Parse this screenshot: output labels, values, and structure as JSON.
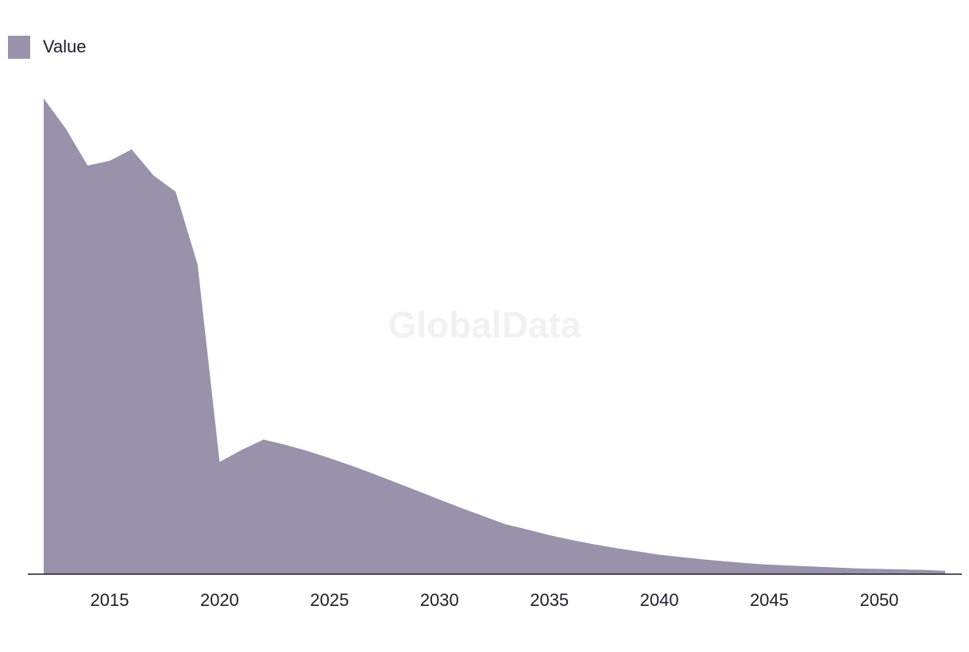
{
  "legend": {
    "label": "Value",
    "color": "#9a91aa"
  },
  "watermark": {
    "text": "GlobalData",
    "color": "#f1f1f1"
  },
  "chart_data": {
    "type": "area",
    "x": [
      2012,
      2013,
      2014,
      2015,
      2016,
      2017,
      2018,
      2019,
      2020,
      2021,
      2022,
      2023,
      2024,
      2025,
      2026,
      2027,
      2028,
      2029,
      2030,
      2031,
      2032,
      2033,
      2034,
      2035,
      2036,
      2037,
      2038,
      2039,
      2040,
      2041,
      2042,
      2043,
      2044,
      2045,
      2046,
      2047,
      2048,
      2049,
      2050,
      2051,
      2052,
      2053
    ],
    "series": [
      {
        "name": "Value",
        "color": "#9a91aa",
        "values": [
          100,
          93.7,
          85.9,
          86.9,
          89.3,
          83.8,
          80.4,
          65.1,
          23.6,
          26.1,
          28.3,
          27.2,
          25.9,
          24.4,
          22.8,
          21.1,
          19.3,
          17.5,
          15.7,
          13.9,
          12.2,
          10.5,
          9.4,
          8.2,
          7.2,
          6.3,
          5.5,
          4.8,
          4.1,
          3.6,
          3.1,
          2.7,
          2.3,
          2.0,
          1.8,
          1.6,
          1.4,
          1.2,
          1.1,
          1.0,
          0.9,
          0.7
        ]
      }
    ],
    "xticks": [
      "2015",
      "2020",
      "2025",
      "2030",
      "2035",
      "2040",
      "2045",
      "2050"
    ],
    "xlim": [
      2012,
      2053
    ],
    "ylim": [
      0,
      100
    ],
    "title": "",
    "xlabel": "",
    "ylabel": "",
    "grid": false,
    "legend_position": "top-left"
  }
}
